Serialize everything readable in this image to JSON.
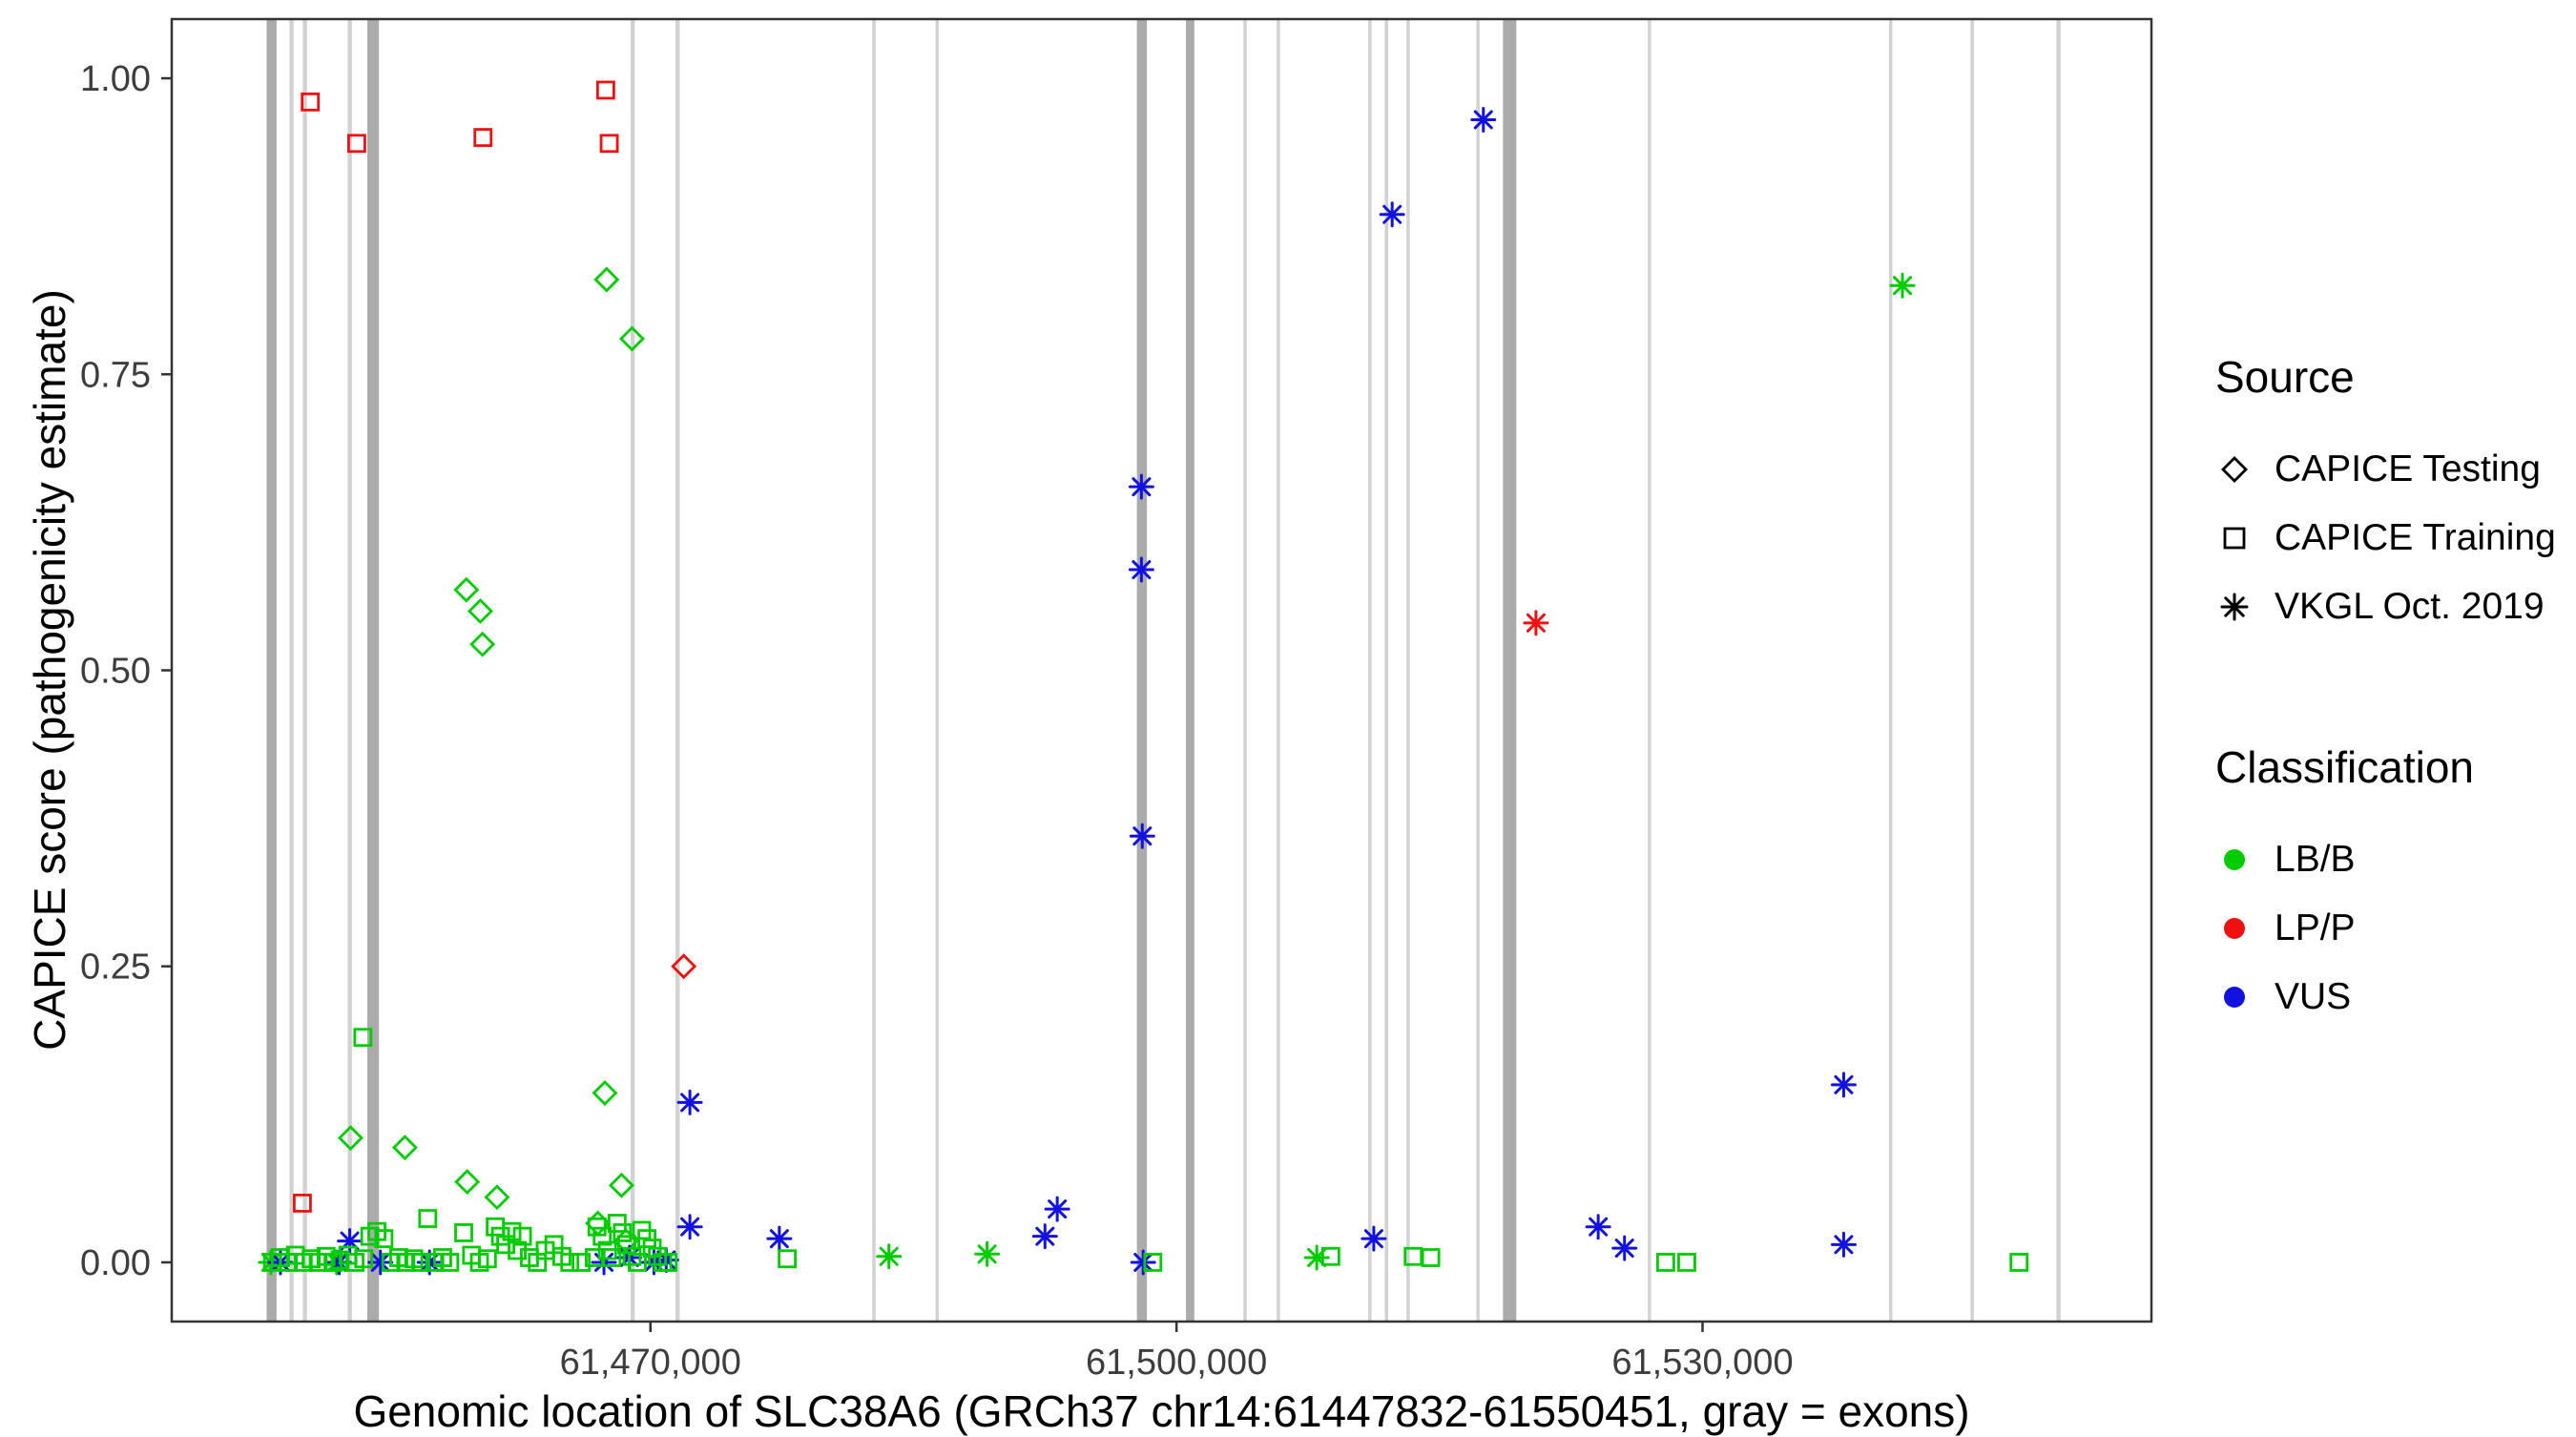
{
  "legend": {
    "source_title": "Source",
    "source_items": [
      {
        "label": "CAPICE Testing",
        "icon": "diamond-icon"
      },
      {
        "label": "CAPICE Training",
        "icon": "square-icon"
      },
      {
        "label": "VKGL Oct. 2019",
        "icon": "asterisk-icon"
      }
    ],
    "classification_title": "Classification",
    "classification_items": [
      {
        "label": "LB/B",
        "color": "#00CC00"
      },
      {
        "label": "LP/P",
        "color": "#F01010"
      },
      {
        "label": "VUS",
        "color": "#1212E0"
      }
    ]
  },
  "colors": {
    "LB/B": "#00CC00",
    "LP/P": "#F01010",
    "VUS": "#1212E0"
  },
  "chart_data": {
    "type": "scatter",
    "title": "",
    "xlabel": "Genomic location of SLC38A6 (GRCh37 chr14:61447832-61550451, gray = exons)",
    "ylabel": "CAPICE score (pathogenicity estimate)",
    "x_domain": [
      61442700,
      61555600
    ],
    "y_domain": [
      -0.05,
      1.05
    ],
    "grid": false,
    "legend_position": "right",
    "x_ticks": [
      {
        "value": 61470000,
        "label": "61,470,000"
      },
      {
        "value": 61500000,
        "label": "61,500,000"
      },
      {
        "value": 61530000,
        "label": "61,530,000"
      }
    ],
    "y_ticks": [
      {
        "value": 0.0,
        "label": "0.00"
      },
      {
        "value": 0.25,
        "label": "0.25"
      },
      {
        "value": 0.5,
        "label": "0.50"
      },
      {
        "value": 0.75,
        "label": "0.75"
      },
      {
        "value": 1.0,
        "label": "1.00"
      }
    ],
    "exon_colors": {
      "thin": "#D2D2D2",
      "wide": "#ABABAB"
    },
    "exons": [
      [
        61448395,
        570
      ],
      [
        61449533,
        240
      ],
      [
        61450293,
        240
      ],
      [
        61452855,
        240
      ],
      [
        61454184,
        660
      ],
      [
        61468986,
        240
      ],
      [
        61471548,
        240
      ],
      [
        61482747,
        190
      ],
      [
        61486353,
        190
      ],
      [
        61498026,
        570
      ],
      [
        61500778,
        475
      ],
      [
        61503910,
        190
      ],
      [
        61505808,
        190
      ],
      [
        61511027,
        190
      ],
      [
        61511976,
        190
      ],
      [
        61513210,
        190
      ],
      [
        61517196,
        190
      ],
      [
        61518999,
        760
      ],
      [
        61526971,
        190
      ],
      [
        61540731,
        190
      ],
      [
        61545381,
        190
      ],
      [
        61550300,
        240
      ]
    ],
    "shape_codes": {
      "D": "CAPICE Testing",
      "S": "CAPICE Training",
      "A": "VKGL Oct. 2019"
    },
    "class_codes": {
      "B": "LB/B",
      "P": "LP/P",
      "V": "VUS"
    },
    "points": [
      [
        61450600,
        0.98,
        "S",
        "P"
      ],
      [
        61453250,
        0.945,
        "S",
        "P"
      ],
      [
        61460450,
        0.95,
        "S",
        "P"
      ],
      [
        61467450,
        0.99,
        "S",
        "P"
      ],
      [
        61467650,
        0.945,
        "S",
        "P"
      ],
      [
        61450150,
        0.05,
        "S",
        "P"
      ],
      [
        61471900,
        0.25,
        "D",
        "P"
      ],
      [
        61520500,
        0.54,
        "A",
        "P"
      ],
      [
        61467500,
        0.83,
        "D",
        "B"
      ],
      [
        61468950,
        0.78,
        "D",
        "B"
      ],
      [
        61459500,
        0.568,
        "D",
        "B"
      ],
      [
        61460300,
        0.55,
        "D",
        "B"
      ],
      [
        61460420,
        0.522,
        "D",
        "B"
      ],
      [
        61467400,
        0.143,
        "D",
        "B"
      ],
      [
        61452900,
        0.105,
        "D",
        "B"
      ],
      [
        61456000,
        0.097,
        "D",
        "B"
      ],
      [
        61459550,
        0.068,
        "D",
        "B"
      ],
      [
        61461250,
        0.055,
        "D",
        "B"
      ],
      [
        61468350,
        0.065,
        "D",
        "B"
      ],
      [
        61467000,
        0.033,
        "D",
        "B"
      ],
      [
        61468600,
        0.018,
        "D",
        "B"
      ],
      [
        61541400,
        0.825,
        "A",
        "B"
      ],
      [
        61483600,
        0.005,
        "A",
        "B"
      ],
      [
        61489200,
        0.007,
        "A",
        "B"
      ],
      [
        61448350,
        0.0,
        "A",
        "B"
      ],
      [
        61452100,
        0.0,
        "A",
        "B"
      ],
      [
        61508000,
        0.004,
        "A",
        "B"
      ],
      [
        61517500,
        0.965,
        "A",
        "V"
      ],
      [
        61512300,
        0.885,
        "A",
        "V"
      ],
      [
        61498000,
        0.655,
        "A",
        "V"
      ],
      [
        61498000,
        0.585,
        "A",
        "V"
      ],
      [
        61498050,
        0.36,
        "A",
        "V"
      ],
      [
        61472250,
        0.135,
        "A",
        "V"
      ],
      [
        61538050,
        0.15,
        "A",
        "V"
      ],
      [
        61493200,
        0.045,
        "A",
        "V"
      ],
      [
        61492500,
        0.022,
        "A",
        "V"
      ],
      [
        61472250,
        0.03,
        "A",
        "V"
      ],
      [
        61477350,
        0.02,
        "A",
        "V"
      ],
      [
        61511250,
        0.02,
        "A",
        "V"
      ],
      [
        61524050,
        0.03,
        "A",
        "V"
      ],
      [
        61525550,
        0.012,
        "A",
        "V"
      ],
      [
        61538050,
        0.015,
        "A",
        "V"
      ],
      [
        61452850,
        0.018,
        "A",
        "V"
      ],
      [
        61448900,
        0.0,
        "A",
        "V"
      ],
      [
        61452250,
        0.0,
        "A",
        "V"
      ],
      [
        61454600,
        0.0,
        "A",
        "V"
      ],
      [
        61457400,
        0.0,
        "A",
        "V"
      ],
      [
        61467350,
        0.0,
        "A",
        "V"
      ],
      [
        61468800,
        0.004,
        "A",
        "V"
      ],
      [
        61470200,
        0.0,
        "A",
        "V"
      ],
      [
        61470900,
        0.002,
        "A",
        "V"
      ],
      [
        61498100,
        0.0,
        "A",
        "V"
      ],
      [
        61453600,
        0.19,
        "S",
        "B"
      ],
      [
        61448450,
        0.0,
        "S",
        "B"
      ],
      [
        61448900,
        0.004,
        "S",
        "B"
      ],
      [
        61449350,
        0.0,
        "S",
        "B"
      ],
      [
        61449750,
        0.006,
        "S",
        "B"
      ],
      [
        61450200,
        0.0,
        "S",
        "B"
      ],
      [
        61450650,
        0.003,
        "S",
        "B"
      ],
      [
        61451050,
        0.0,
        "S",
        "B"
      ],
      [
        61451500,
        0.005,
        "S",
        "B"
      ],
      [
        61451900,
        0.0,
        "S",
        "B"
      ],
      [
        61452300,
        0.002,
        "S",
        "B"
      ],
      [
        61452750,
        0.006,
        "S",
        "B"
      ],
      [
        61453150,
        0.0,
        "S",
        "B"
      ],
      [
        61453650,
        0.003,
        "S",
        "B"
      ],
      [
        61454000,
        0.022,
        "S",
        "B"
      ],
      [
        61454400,
        0.026,
        "S",
        "B"
      ],
      [
        61454800,
        0.02,
        "S",
        "B"
      ],
      [
        61455200,
        0.0,
        "S",
        "B"
      ],
      [
        61455650,
        0.004,
        "S",
        "B"
      ],
      [
        61456050,
        0.0,
        "S",
        "B"
      ],
      [
        61456500,
        0.003,
        "S",
        "B"
      ],
      [
        61456900,
        0.0,
        "S",
        "B"
      ],
      [
        61457300,
        0.037,
        "S",
        "B"
      ],
      [
        61457700,
        0.0,
        "S",
        "B"
      ],
      [
        61458150,
        0.004,
        "S",
        "B"
      ],
      [
        61458550,
        0.0,
        "S",
        "B"
      ],
      [
        61459350,
        0.025,
        "S",
        "B"
      ],
      [
        61459800,
        0.006,
        "S",
        "B"
      ],
      [
        61460250,
        0.0,
        "S",
        "B"
      ],
      [
        61460700,
        0.003,
        "S",
        "B"
      ],
      [
        61461150,
        0.03,
        "S",
        "B"
      ],
      [
        61461450,
        0.022,
        "S",
        "B"
      ],
      [
        61461750,
        0.015,
        "S",
        "B"
      ],
      [
        61462100,
        0.026,
        "S",
        "B"
      ],
      [
        61462400,
        0.01,
        "S",
        "B"
      ],
      [
        61462700,
        0.022,
        "S",
        "B"
      ],
      [
        61463100,
        0.004,
        "S",
        "B"
      ],
      [
        61463550,
        0.0,
        "S",
        "B"
      ],
      [
        61464000,
        0.01,
        "S",
        "B"
      ],
      [
        61464500,
        0.015,
        "S",
        "B"
      ],
      [
        61464950,
        0.005,
        "S",
        "B"
      ],
      [
        61465400,
        0.0,
        "S",
        "B"
      ],
      [
        61466050,
        0.0,
        "S",
        "B"
      ],
      [
        61466800,
        0.004,
        "S",
        "B"
      ],
      [
        61466950,
        0.03,
        "S",
        "B"
      ],
      [
        61467250,
        0.022,
        "S",
        "B"
      ],
      [
        61467550,
        0.01,
        "S",
        "B"
      ],
      [
        61467800,
        0.004,
        "S",
        "B"
      ],
      [
        61468100,
        0.033,
        "S",
        "B"
      ],
      [
        61468400,
        0.025,
        "S",
        "B"
      ],
      [
        61468650,
        0.015,
        "S",
        "B"
      ],
      [
        61468950,
        0.005,
        "S",
        "B"
      ],
      [
        61469250,
        0.0,
        "S",
        "B"
      ],
      [
        61469500,
        0.027,
        "S",
        "B"
      ],
      [
        61469800,
        0.02,
        "S",
        "B"
      ],
      [
        61470100,
        0.012,
        "S",
        "B"
      ],
      [
        61470400,
        0.005,
        "S",
        "B"
      ],
      [
        61470700,
        0.0,
        "S",
        "B"
      ],
      [
        61471000,
        0.0,
        "S",
        "B"
      ],
      [
        61477800,
        0.003,
        "S",
        "B"
      ],
      [
        61498650,
        0.0,
        "S",
        "B"
      ],
      [
        61508800,
        0.005,
        "S",
        "B"
      ],
      [
        61513500,
        0.005,
        "S",
        "B"
      ],
      [
        61514500,
        0.004,
        "S",
        "B"
      ],
      [
        61527900,
        0.0,
        "S",
        "B"
      ],
      [
        61529100,
        0.0,
        "S",
        "B"
      ],
      [
        61548050,
        0.0,
        "S",
        "B"
      ]
    ]
  }
}
